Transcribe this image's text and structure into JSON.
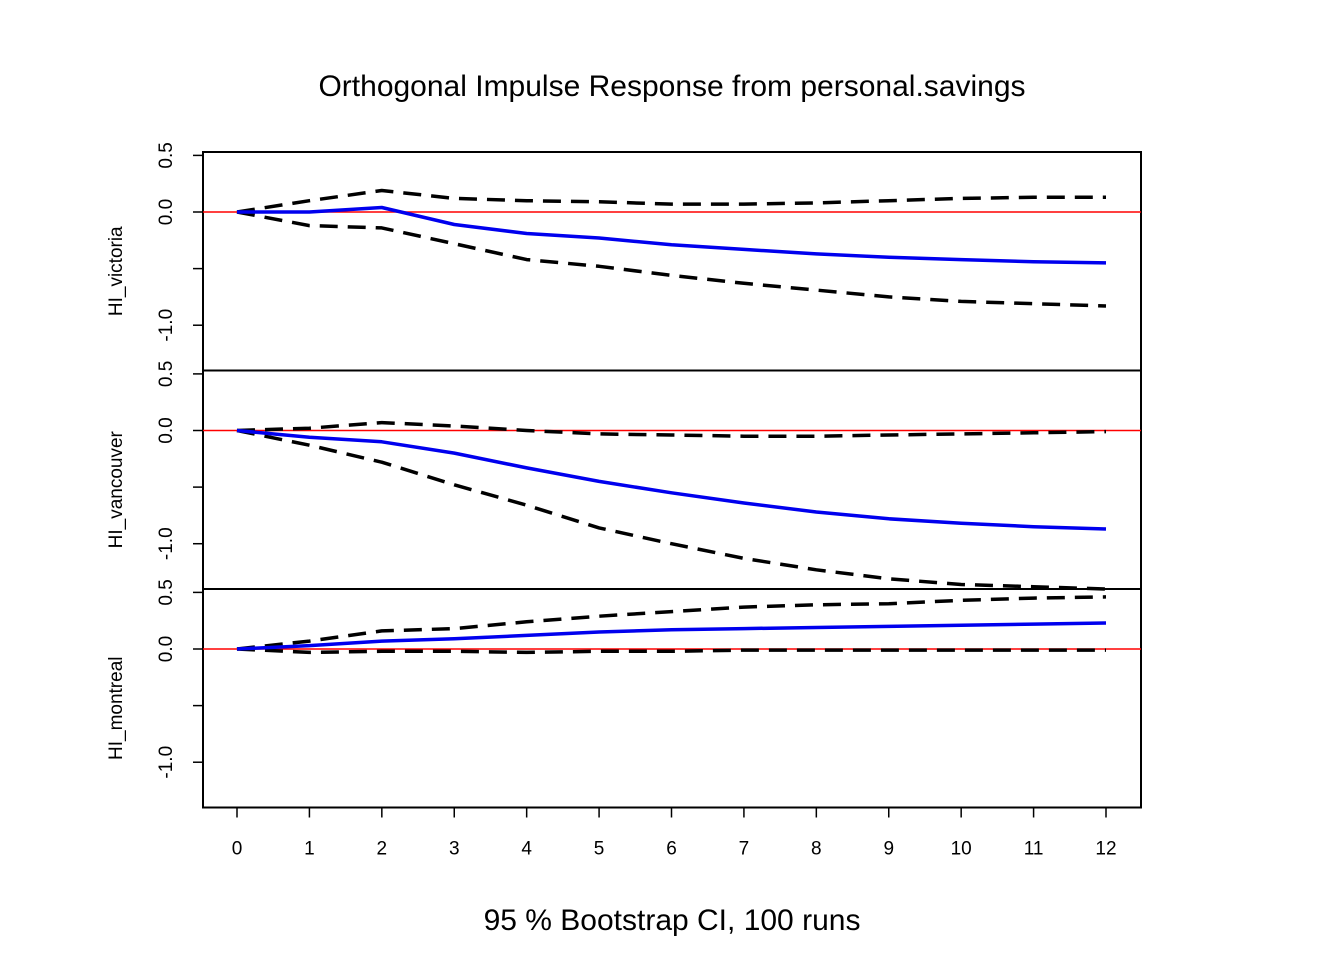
{
  "chart_data": {
    "type": "line",
    "title": "Orthogonal Impulse Response from personal.savings",
    "xlabel": "95 % Bootstrap CI,  100 runs",
    "x": [
      0,
      1,
      2,
      3,
      4,
      5,
      6,
      7,
      8,
      9,
      10,
      11,
      12
    ],
    "x_ticks": [
      "0",
      "1",
      "2",
      "3",
      "4",
      "5",
      "6",
      "7",
      "8",
      "9",
      "10",
      "11",
      "12"
    ],
    "ylim": [
      -1.4,
      0.53
    ],
    "y_ticks": [
      {
        "value": 0.5,
        "label": "0.5"
      },
      {
        "value": 0.0,
        "label": "0.0"
      },
      {
        "value": -0.5,
        "label": ""
      },
      {
        "value": -1.0,
        "label": "-1.0"
      }
    ],
    "colors": {
      "irf": "#0000ee",
      "ci": "#000000",
      "zero_line": "#ff0000"
    },
    "panels": [
      {
        "ylabel": "HI_victoria",
        "irf": [
          0,
          0.0,
          0.04,
          -0.11,
          -0.19,
          -0.23,
          -0.29,
          -0.33,
          -0.37,
          -0.4,
          -0.42,
          -0.44,
          -0.45
        ],
        "upper": [
          0,
          0.1,
          0.19,
          0.12,
          0.1,
          0.09,
          0.07,
          0.07,
          0.08,
          0.1,
          0.12,
          0.13,
          0.13
        ],
        "lower": [
          0,
          -0.12,
          -0.14,
          -0.28,
          -0.42,
          -0.48,
          -0.56,
          -0.63,
          -0.69,
          -0.75,
          -0.79,
          -0.81,
          -0.83
        ]
      },
      {
        "ylabel": "HI_vancouver",
        "irf": [
          0,
          -0.06,
          -0.1,
          -0.2,
          -0.33,
          -0.45,
          -0.55,
          -0.64,
          -0.72,
          -0.78,
          -0.82,
          -0.85,
          -0.87
        ],
        "upper": [
          0,
          0.02,
          0.07,
          0.04,
          0.0,
          -0.03,
          -0.04,
          -0.05,
          -0.05,
          -0.04,
          -0.03,
          -0.02,
          -0.01
        ],
        "lower": [
          0,
          -0.13,
          -0.28,
          -0.48,
          -0.66,
          -0.86,
          -1.0,
          -1.13,
          -1.23,
          -1.31,
          -1.36,
          -1.38,
          -1.4
        ]
      },
      {
        "ylabel": "HI_montreal",
        "irf": [
          0,
          0.03,
          0.07,
          0.09,
          0.12,
          0.15,
          0.17,
          0.18,
          0.19,
          0.2,
          0.21,
          0.22,
          0.23
        ],
        "upper": [
          0,
          0.07,
          0.16,
          0.18,
          0.24,
          0.29,
          0.33,
          0.37,
          0.39,
          0.4,
          0.43,
          0.45,
          0.46
        ],
        "lower": [
          0,
          -0.03,
          -0.02,
          -0.02,
          -0.03,
          -0.02,
          -0.02,
          -0.01,
          -0.01,
          -0.01,
          -0.01,
          -0.01,
          -0.01
        ]
      }
    ]
  }
}
